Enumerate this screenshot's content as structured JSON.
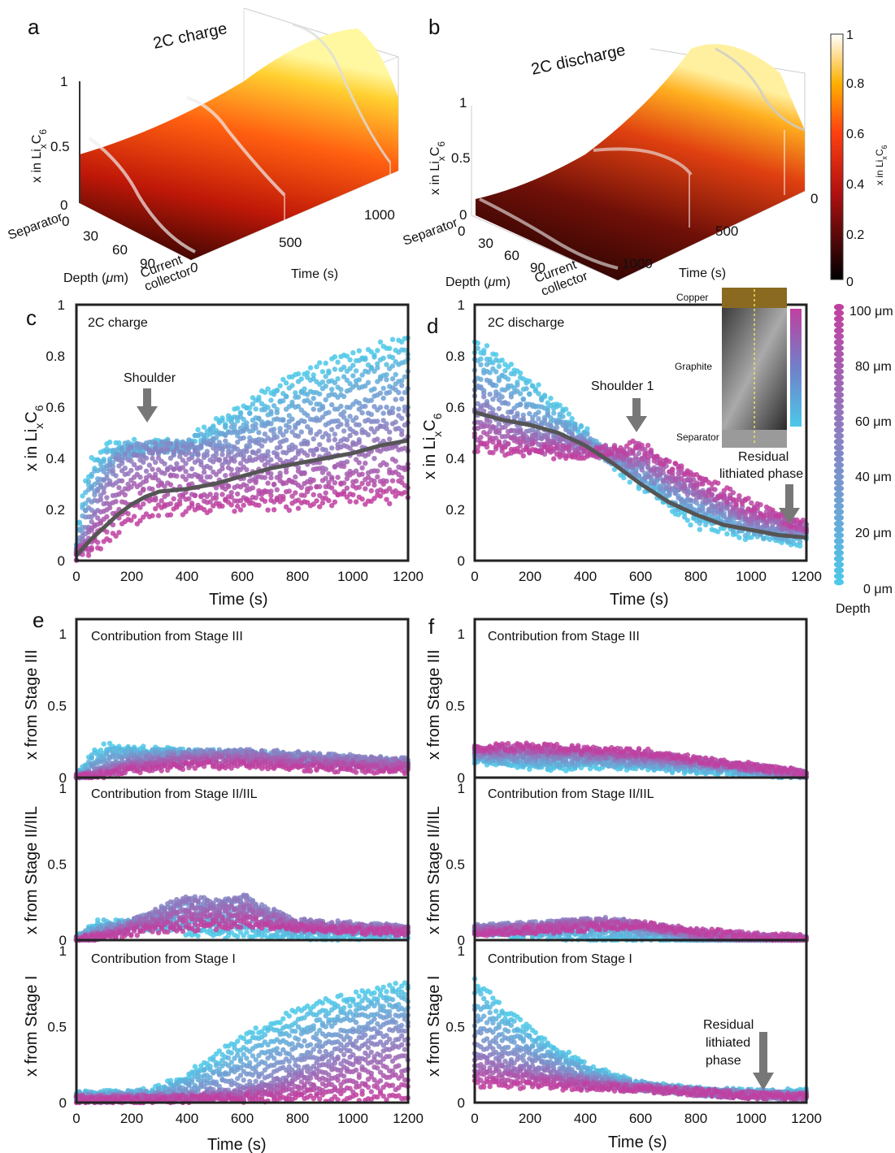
{
  "panels": {
    "a": {
      "letter": "a",
      "title": "2C charge",
      "zlabel": "x in Li",
      "zlabel_sub1": "x",
      "zlabel_c": "C",
      "zlabel_sub2": "6",
      "zticks": [
        "1",
        "0.5",
        "0"
      ],
      "depth_ticks": [
        "0",
        "30",
        "60",
        "90"
      ],
      "time_ticks": [
        "0",
        "500",
        "1000"
      ],
      "separator": "Separator",
      "current": "Current",
      "collector": "collector",
      "depth_label": "Depth (",
      "mu": "μ",
      "depth_unit": "m)",
      "time_label": "Time (s)"
    },
    "b": {
      "letter": "b",
      "title": "2C discharge",
      "zticks": [
        "1",
        "0.5",
        "0"
      ],
      "depth_ticks": [
        "0",
        "30",
        "60",
        "90"
      ],
      "time_ticks": [
        "0",
        "500",
        "1000"
      ],
      "separator": "Separator",
      "current": "Current",
      "collector": "collector",
      "depth_label": "Depth (",
      "mu": "μ",
      "depth_unit": "m)",
      "time_label": "Time (s)"
    },
    "colorbar": {
      "ticks": [
        "1",
        "0.8",
        "0.6",
        "0.4",
        "0.2",
        "0"
      ],
      "label": "x in Li",
      "sub1": "x",
      "c": "C",
      "sub2": "6"
    },
    "c": {
      "letter": "c",
      "title": "2C charge",
      "annotation": "Shoulder"
    },
    "d": {
      "letter": "d",
      "title": "2C discharge",
      "annotation1": "Shoulder 1",
      "annotation2a": "Residual",
      "annotation2b": "lithiated phase",
      "inset": {
        "copper": "Copper",
        "graphite": "Graphite",
        "separator": "Separator"
      }
    },
    "e": {
      "letter": "e",
      "top_title": "Contribution from Stage III",
      "mid_title": "Contribution from Stage II/IIL",
      "bot_title": "Contribution from Stage I",
      "top_ylabel": "x from Stage III",
      "mid_ylabel": "x from Stage II/IIL",
      "bot_ylabel": "x from Stage I"
    },
    "f": {
      "letter": "f",
      "top_title": "Contribution from Stage III",
      "mid_title": "Contribution from Stage II/IIL",
      "bot_title": "Contribution from Stage I",
      "top_ylabel": "x from Stage III",
      "mid_ylabel": "x from Stage II/IIL",
      "bot_ylabel": "x from Stage I",
      "annotation_a": "Residual",
      "annotation_b": "lithiated",
      "annotation_c": "phase"
    },
    "depth_legend": {
      "labels": [
        "100 μm",
        "80 μm",
        "60 μm",
        "40 μm",
        "20 μm",
        "0 μm"
      ],
      "title": "Depth"
    }
  },
  "axes_text": {
    "cd_ylabel": "x in Li",
    "cd_sub1": "x",
    "cd_c": "C",
    "cd_sub2": "6",
    "time_label": "Time (s)",
    "x_ticks": [
      "0",
      "200",
      "400",
      "600",
      "800",
      "1000",
      "1200"
    ],
    "cd_y_ticks": [
      "0",
      "0.2",
      "0.4",
      "0.6",
      "0.8",
      "1"
    ],
    "ef_y_ticks": [
      "0",
      "0.5",
      "1"
    ]
  },
  "colors": {
    "shallow": "#4cc8e8",
    "deep": "#c040a0",
    "mean_line": "#555555",
    "arrow": "#777777"
  },
  "chart_data": [
    {
      "id": "c",
      "type": "scatter",
      "title": "2C charge",
      "xlabel": "Time (s)",
      "ylabel": "x in LixC6",
      "xlim": [
        0,
        1200
      ],
      "ylim": [
        0,
        1
      ],
      "series": [
        {
          "depth": 0,
          "x": [
            0,
            30,
            60,
            100,
            150,
            200,
            300,
            400,
            600,
            800,
            1000,
            1200
          ],
          "y": [
            0.05,
            0.3,
            0.4,
            0.44,
            0.45,
            0.45,
            0.45,
            0.46,
            0.6,
            0.72,
            0.8,
            0.86
          ]
        },
        {
          "depth": 50,
          "x": [
            0,
            30,
            60,
            100,
            150,
            200,
            300,
            400,
            600,
            800,
            1000,
            1200
          ],
          "y": [
            0.02,
            0.1,
            0.2,
            0.3,
            0.38,
            0.42,
            0.44,
            0.43,
            0.42,
            0.45,
            0.5,
            0.55
          ]
        },
        {
          "depth": 100,
          "x": [
            0,
            30,
            60,
            100,
            150,
            200,
            300,
            400,
            600,
            800,
            1000,
            1200
          ],
          "y": [
            0.02,
            0.03,
            0.05,
            0.08,
            0.12,
            0.16,
            0.2,
            0.2,
            0.22,
            0.22,
            0.24,
            0.25
          ]
        }
      ],
      "mean": {
        "x": [
          0,
          50,
          100,
          150,
          200,
          250,
          300,
          400,
          500,
          600,
          700,
          800,
          900,
          1000,
          1100,
          1200
        ],
        "y": [
          0.02,
          0.08,
          0.13,
          0.18,
          0.22,
          0.25,
          0.27,
          0.28,
          0.3,
          0.33,
          0.36,
          0.38,
          0.4,
          0.42,
          0.45,
          0.47
        ]
      }
    },
    {
      "id": "d",
      "type": "scatter",
      "title": "2C discharge",
      "xlabel": "Time (s)",
      "ylabel": "x in LixC6",
      "xlim": [
        0,
        1200
      ],
      "ylim": [
        0,
        1
      ],
      "series": [
        {
          "depth": 0,
          "x": [
            0,
            100,
            200,
            300,
            400,
            500,
            600,
            800,
            1000,
            1200
          ],
          "y": [
            0.85,
            0.78,
            0.7,
            0.6,
            0.5,
            0.38,
            0.3,
            0.15,
            0.1,
            0.08
          ]
        },
        {
          "depth": 50,
          "x": [
            0,
            100,
            200,
            300,
            400,
            500,
            600,
            800,
            1000,
            1200
          ],
          "y": [
            0.62,
            0.56,
            0.5,
            0.48,
            0.45,
            0.4,
            0.36,
            0.25,
            0.15,
            0.12
          ]
        },
        {
          "depth": 100,
          "x": [
            0,
            100,
            200,
            300,
            400,
            500,
            600,
            800,
            1000,
            1200
          ],
          "y": [
            0.44,
            0.43,
            0.42,
            0.42,
            0.42,
            0.44,
            0.45,
            0.32,
            0.22,
            0.13
          ]
        }
      ],
      "mean": {
        "x": [
          0,
          100,
          200,
          300,
          400,
          500,
          600,
          700,
          800,
          900,
          1000,
          1100,
          1200
        ],
        "y": [
          0.58,
          0.55,
          0.53,
          0.5,
          0.45,
          0.38,
          0.3,
          0.23,
          0.18,
          0.14,
          0.12,
          0.1,
          0.09
        ]
      }
    },
    {
      "id": "e-top",
      "type": "scatter",
      "title": "Contribution from Stage III",
      "xlim": [
        0,
        1200
      ],
      "ylim": [
        0,
        1
      ],
      "series": [
        {
          "depth": 0,
          "x": [
            0,
            50,
            100,
            150,
            200,
            400,
            600,
            800,
            1000,
            1200
          ],
          "y": [
            0.0,
            0.15,
            0.22,
            0.22,
            0.2,
            0.18,
            0.16,
            0.12,
            0.1,
            0.08
          ]
        },
        {
          "depth": 50,
          "x": [
            0,
            100,
            200,
            400,
            600,
            800,
            1000,
            1200
          ],
          "y": [
            0.0,
            0.05,
            0.12,
            0.16,
            0.18,
            0.16,
            0.14,
            0.12
          ]
        },
        {
          "depth": 100,
          "x": [
            0,
            100,
            200,
            400,
            600,
            800,
            1000,
            1200
          ],
          "y": [
            0.0,
            0.02,
            0.05,
            0.08,
            0.09,
            0.07,
            0.06,
            0.05
          ]
        }
      ]
    },
    {
      "id": "e-mid",
      "type": "scatter",
      "title": "Contribution from Stage II/IIL",
      "xlim": [
        0,
        1200
      ],
      "ylim": [
        0,
        1
      ],
      "series": [
        {
          "depth": 0,
          "x": [
            0,
            50,
            100,
            200,
            400,
            600,
            800,
            1000,
            1200
          ],
          "y": [
            0.0,
            0.1,
            0.12,
            0.1,
            0.05,
            0.03,
            0.02,
            0.02,
            0.02
          ]
        },
        {
          "depth": 50,
          "x": [
            0,
            100,
            200,
            300,
            400,
            500,
            600,
            700,
            800,
            1000,
            1200
          ],
          "y": [
            0.0,
            0.05,
            0.12,
            0.2,
            0.3,
            0.25,
            0.3,
            0.2,
            0.12,
            0.1,
            0.08
          ]
        },
        {
          "depth": 100,
          "x": [
            0,
            100,
            200,
            400,
            600,
            800,
            1000,
            1200
          ],
          "y": [
            0.0,
            0.02,
            0.05,
            0.08,
            0.1,
            0.08,
            0.06,
            0.05
          ]
        }
      ]
    },
    {
      "id": "e-bot",
      "type": "scatter",
      "title": "Contribution from Stage I",
      "xlabel": "Time (s)",
      "xlim": [
        0,
        1200
      ],
      "ylim": [
        0,
        1
      ],
      "series": [
        {
          "depth": 0,
          "x": [
            0,
            100,
            200,
            300,
            400,
            500,
            600,
            700,
            800,
            900,
            1000,
            1100,
            1200
          ],
          "y": [
            0.05,
            0.06,
            0.07,
            0.09,
            0.18,
            0.3,
            0.42,
            0.52,
            0.6,
            0.66,
            0.7,
            0.74,
            0.78
          ]
        },
        {
          "depth": 50,
          "x": [
            0,
            200,
            400,
            600,
            700,
            800,
            900,
            1000,
            1100,
            1200
          ],
          "y": [
            0.03,
            0.03,
            0.04,
            0.08,
            0.15,
            0.22,
            0.3,
            0.38,
            0.42,
            0.46
          ]
        },
        {
          "depth": 100,
          "x": [
            0,
            400,
            800,
            1200
          ],
          "y": [
            0.02,
            0.02,
            0.03,
            0.04
          ]
        }
      ]
    },
    {
      "id": "f-top",
      "type": "scatter",
      "title": "Contribution from Stage III",
      "xlim": [
        0,
        1200
      ],
      "ylim": [
        0,
        1
      ],
      "series": [
        {
          "depth": 0,
          "x": [
            0,
            100,
            200,
            300,
            400,
            600,
            800,
            1000,
            1200
          ],
          "y": [
            0.12,
            0.1,
            0.08,
            0.07,
            0.08,
            0.07,
            0.05,
            0.03,
            0.01
          ]
        },
        {
          "depth": 50,
          "x": [
            0,
            200,
            400,
            600,
            800,
            1000,
            1200
          ],
          "y": [
            0.17,
            0.16,
            0.15,
            0.13,
            0.1,
            0.06,
            0.02
          ]
        },
        {
          "depth": 100,
          "x": [
            0,
            200,
            400,
            600,
            800,
            1000,
            1200
          ],
          "y": [
            0.21,
            0.22,
            0.2,
            0.18,
            0.13,
            0.08,
            0.03
          ]
        }
      ]
    },
    {
      "id": "f-mid",
      "type": "scatter",
      "title": "Contribution from Stage II/IIL",
      "xlim": [
        0,
        1200
      ],
      "ylim": [
        0,
        1
      ],
      "series": [
        {
          "depth": 0,
          "x": [
            0,
            100,
            200,
            300,
            400,
            500,
            600,
            700,
            800,
            1000,
            1200
          ],
          "y": [
            0.06,
            0.04,
            0.03,
            0.02,
            0.01,
            0.0,
            0.0,
            0.0,
            0.0,
            0.0,
            0.0
          ]
        },
        {
          "depth": 50,
          "x": [
            0,
            200,
            400,
            500,
            600,
            700,
            800,
            1000,
            1200
          ],
          "y": [
            0.08,
            0.1,
            0.13,
            0.13,
            0.1,
            0.06,
            0.03,
            0.01,
            0.0
          ]
        },
        {
          "depth": 100,
          "x": [
            0,
            200,
            400,
            600,
            700,
            800,
            1000,
            1200
          ],
          "y": [
            0.05,
            0.06,
            0.08,
            0.1,
            0.08,
            0.06,
            0.03,
            0.01
          ]
        }
      ]
    },
    {
      "id": "f-bot",
      "type": "scatter",
      "title": "Contribution from Stage I",
      "xlabel": "Time (s)",
      "xlim": [
        0,
        1200
      ],
      "ylim": [
        0,
        1
      ],
      "series": [
        {
          "depth": 0,
          "x": [
            0,
            50,
            100,
            200,
            300,
            400,
            500,
            600,
            800,
            1000,
            1200
          ],
          "y": [
            0.8,
            0.72,
            0.62,
            0.48,
            0.35,
            0.25,
            0.17,
            0.12,
            0.08,
            0.07,
            0.07
          ]
        },
        {
          "depth": 50,
          "x": [
            0,
            100,
            200,
            300,
            400,
            600,
            800,
            1000,
            1200
          ],
          "y": [
            0.35,
            0.3,
            0.25,
            0.2,
            0.15,
            0.1,
            0.07,
            0.05,
            0.04
          ]
        },
        {
          "depth": 100,
          "x": [
            0,
            200,
            400,
            600,
            800,
            1000,
            1200
          ],
          "y": [
            0.12,
            0.11,
            0.1,
            0.09,
            0.07,
            0.05,
            0.04
          ]
        }
      ]
    }
  ]
}
